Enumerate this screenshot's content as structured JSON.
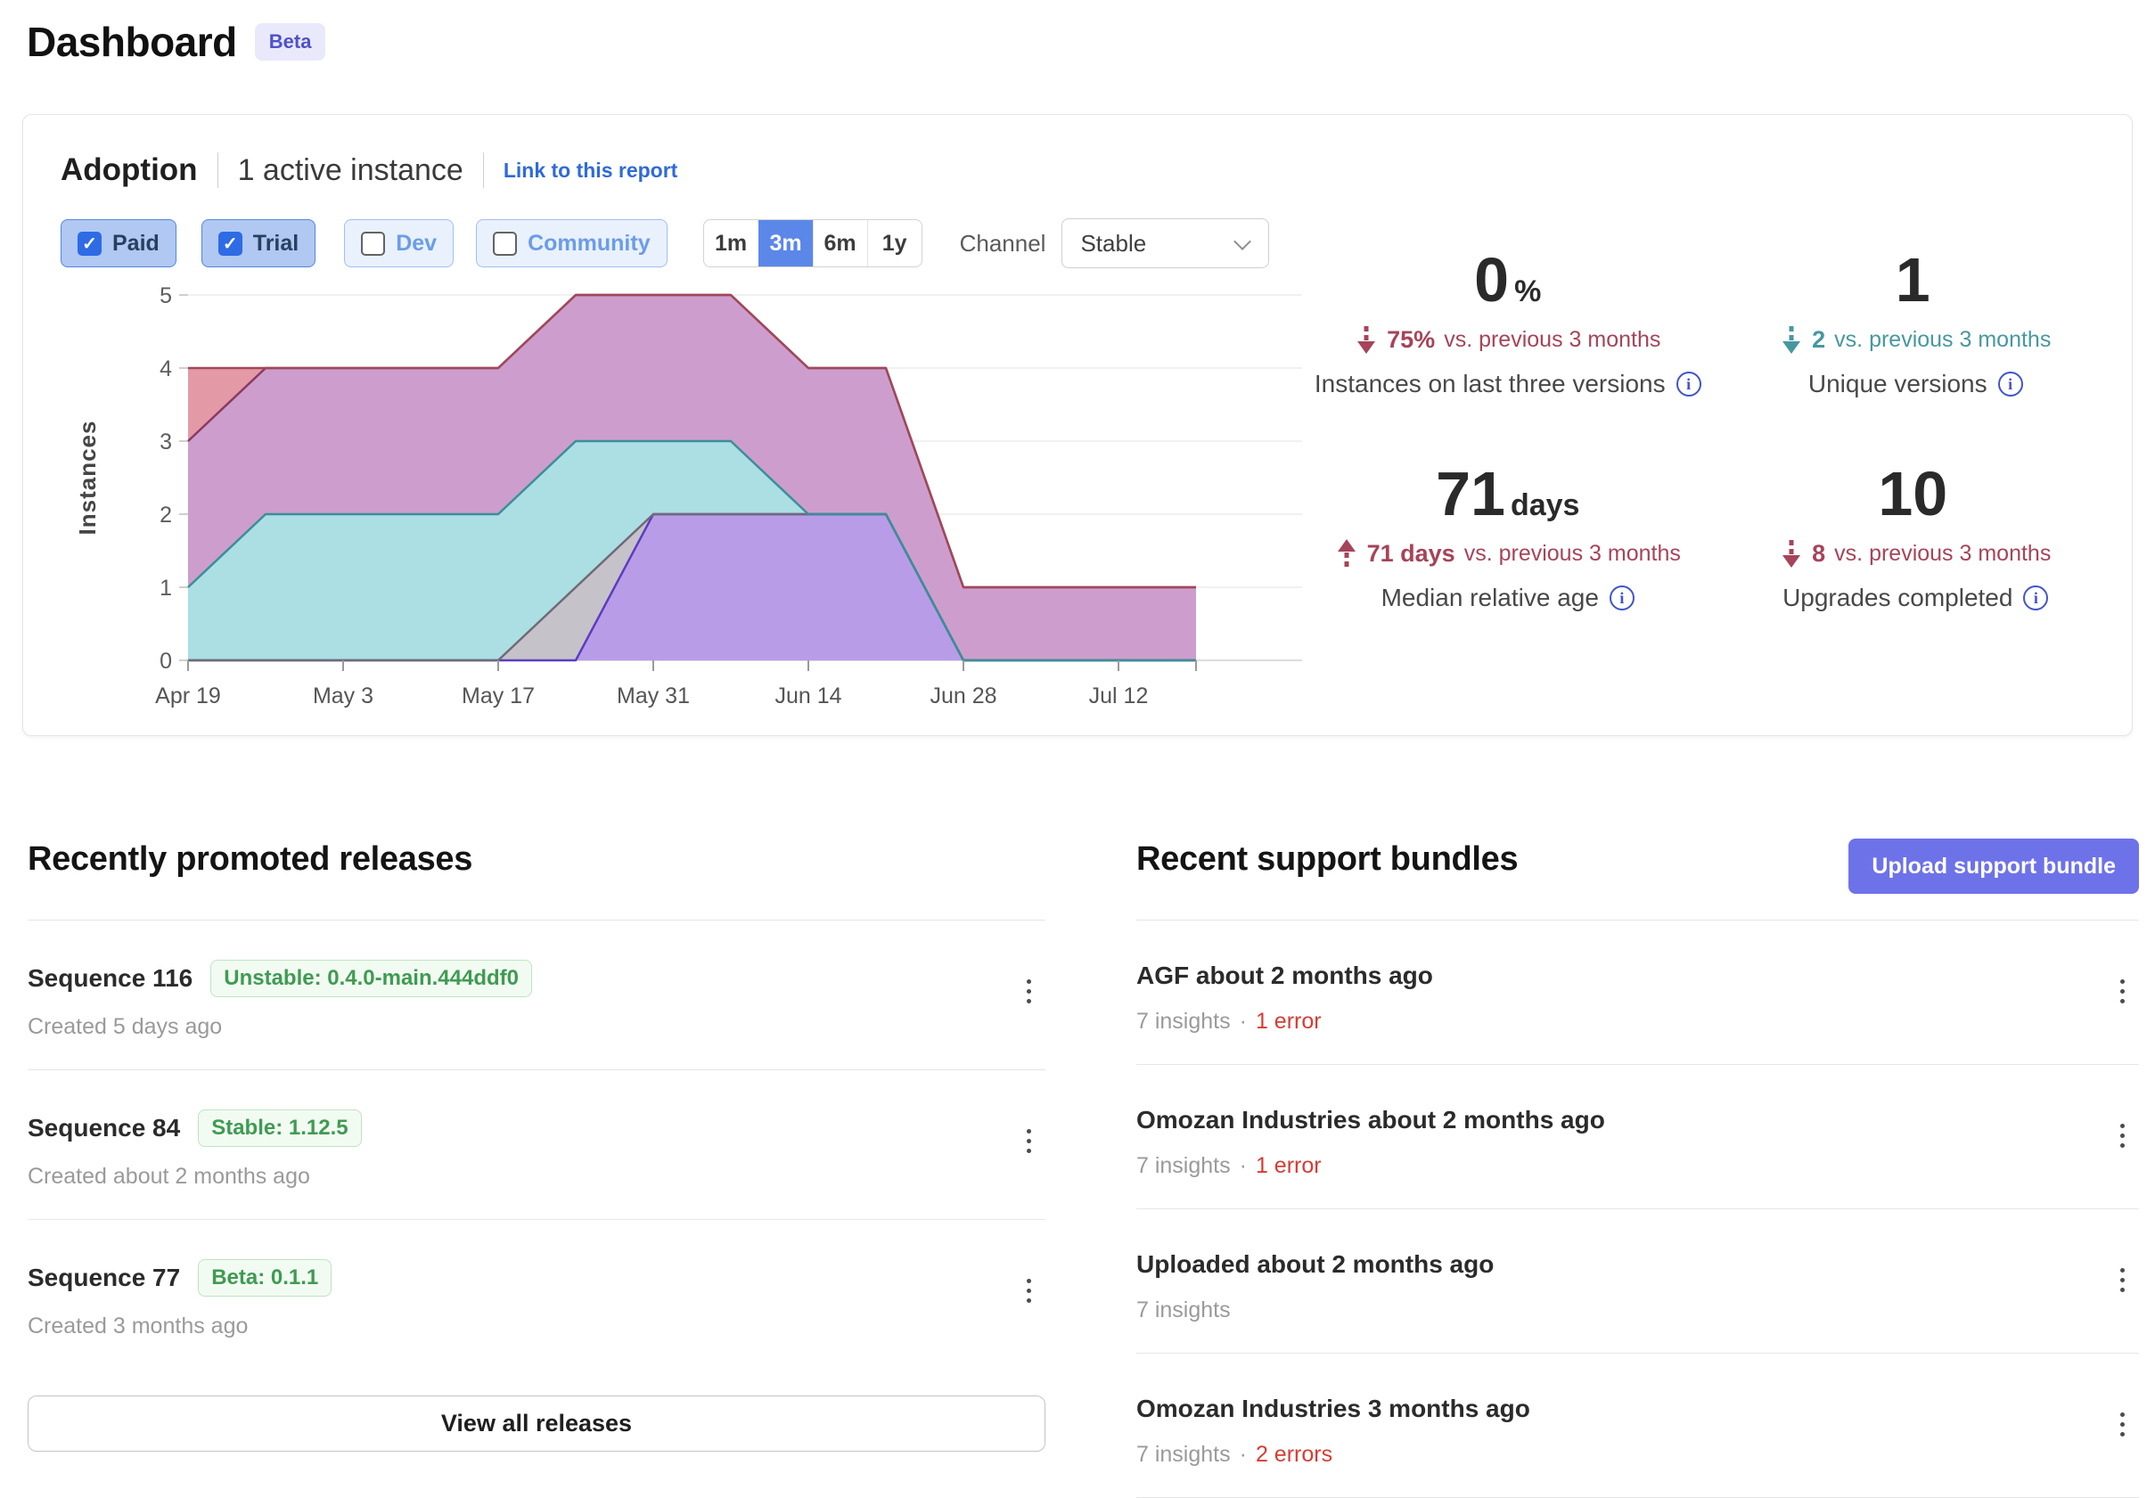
{
  "page": {
    "title": "Dashboard",
    "beta_badge": "Beta"
  },
  "adoption": {
    "title": "Adoption",
    "active_instances": "1 active instance",
    "link": "Link to this report",
    "filters": [
      {
        "label": "Paid",
        "checked": true
      },
      {
        "label": "Trial",
        "checked": true
      },
      {
        "label": "Dev",
        "checked": false
      },
      {
        "label": "Community",
        "checked": false
      }
    ],
    "ranges": [
      {
        "label": "1m"
      },
      {
        "label": "3m"
      },
      {
        "label": "6m"
      },
      {
        "label": "1y"
      }
    ],
    "selected_range": "3m",
    "channel_label": "Channel",
    "channel_value": "Stable",
    "stats": [
      {
        "value": "0",
        "unit": "%",
        "trend_icon": "arrow-down-dashed",
        "trend_color": "#a64459",
        "trend_bold": "75%",
        "trend_text": "vs. previous 3 months",
        "label": "Instances on last three versions"
      },
      {
        "value": "1",
        "unit": "",
        "trend_icon": "arrow-down-dashed",
        "trend_color": "#47989e",
        "trend_bold": "2",
        "trend_text": "vs. previous 3 months",
        "label": "Unique versions"
      },
      {
        "value": "71",
        "unit": "days",
        "trend_icon": "arrow-up-dashed",
        "trend_color": "#a64459",
        "trend_bold": "71 days",
        "trend_text": "vs. previous 3 months",
        "label": "Median relative age"
      },
      {
        "value": "10",
        "unit": "",
        "trend_icon": "arrow-down-dashed",
        "trend_color": "#a64459",
        "trend_bold": "8",
        "trend_text": "vs. previous 3 months",
        "label": "Upgrades completed"
      }
    ]
  },
  "chart_data": {
    "type": "area",
    "stacked": true,
    "title": "",
    "xlabel": "",
    "ylabel": "Instances",
    "ylim": [
      0,
      5
    ],
    "yticks": [
      0,
      1,
      2,
      3,
      4,
      5
    ],
    "grid": true,
    "legend": false,
    "x": [
      "Apr 19",
      "Apr 26",
      "May 3",
      "May 10",
      "May 17",
      "May 24",
      "May 31",
      "Jun 7",
      "Jun 14",
      "Jun 21",
      "Jun 28",
      "Jul 5",
      "Jul 12",
      "Jul 19"
    ],
    "x_tick_label_indices": [
      0,
      2,
      4,
      6,
      8,
      10,
      12
    ],
    "series": [
      {
        "name": "version-violet",
        "fill": "#b99ce8",
        "stroke": "#5b3ebe",
        "values": [
          0,
          0,
          0,
          0,
          0,
          0,
          2,
          2,
          2,
          2,
          0,
          0,
          0,
          0
        ]
      },
      {
        "name": "version-gray",
        "fill": "#c6c2ca",
        "stroke": "#6f6a75",
        "values": [
          0,
          0,
          0,
          0,
          0,
          1,
          0,
          0,
          0,
          0,
          0,
          0,
          0,
          0
        ]
      },
      {
        "name": "version-teal",
        "fill": "#abdfe3",
        "stroke": "#3b8f98",
        "values": [
          1,
          2,
          2,
          2,
          2,
          2,
          1,
          1,
          0,
          0,
          0,
          0,
          0,
          0
        ]
      },
      {
        "name": "version-mauve",
        "fill": "#cd9ecd",
        "stroke": "#8a3a62",
        "values": [
          2,
          2,
          2,
          2,
          2,
          2,
          2,
          2,
          2,
          2,
          1,
          1,
          1,
          1
        ]
      },
      {
        "name": "version-salmon",
        "fill": "#e49aa6",
        "stroke": "#a04858",
        "values": [
          1,
          0,
          0,
          0,
          0,
          0,
          0,
          0,
          0,
          0,
          0,
          0,
          0,
          0
        ]
      }
    ]
  },
  "releases": {
    "heading": "Recently promoted releases",
    "items": [
      {
        "title": "Sequence 116",
        "badge": "Unstable: 0.4.0-main.444ddf0",
        "created": "Created 5 days ago"
      },
      {
        "title": "Sequence 84",
        "badge": "Stable: 1.12.5",
        "created": "Created about 2 months ago"
      },
      {
        "title": "Sequence 77",
        "badge": "Beta: 0.1.1",
        "created": "Created 3 months ago"
      }
    ],
    "view_all": "View all releases"
  },
  "bundles": {
    "heading": "Recent support bundles",
    "upload_button": "Upload support bundle",
    "upload_button_color": "#6e72e9",
    "error_color": "#d63c33",
    "items": [
      {
        "title": "AGF about 2 months ago",
        "insights": "7 insights",
        "sep": "·",
        "errors": "1 error"
      },
      {
        "title": "Omozan Industries about 2 months ago",
        "insights": "7 insights",
        "sep": "·",
        "errors": "1 error"
      },
      {
        "title": "Uploaded about 2 months ago",
        "insights": "7 insights",
        "sep": null,
        "errors": null
      },
      {
        "title": "Omozan Industries 3 months ago",
        "insights": "7 insights",
        "sep": "·",
        "errors": "2 errors"
      }
    ]
  }
}
